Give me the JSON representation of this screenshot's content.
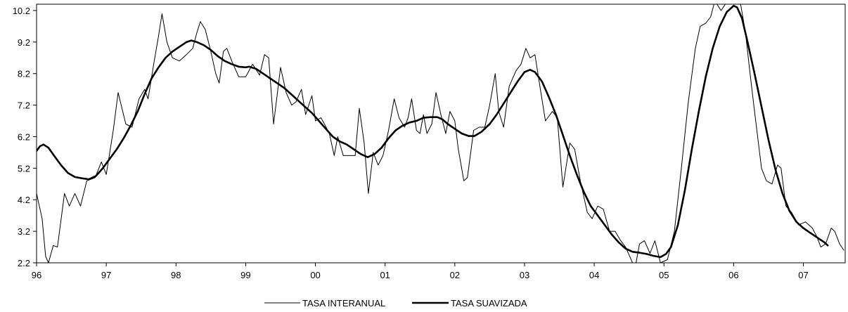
{
  "chart_data": {
    "type": "line",
    "title": "",
    "xlabel": "",
    "ylabel": "",
    "xlim": [
      1996.0,
      2007.6
    ],
    "ylim": [
      2.2,
      10.4
    ],
    "x_ticks": [
      {
        "value": 1996,
        "label": "96"
      },
      {
        "value": 1997,
        "label": "97"
      },
      {
        "value": 1998,
        "label": "98"
      },
      {
        "value": 1999,
        "label": "99"
      },
      {
        "value": 2000,
        "label": "00"
      },
      {
        "value": 2001,
        "label": "01"
      },
      {
        "value": 2002,
        "label": "02"
      },
      {
        "value": 2003,
        "label": "03"
      },
      {
        "value": 2004,
        "label": "04"
      },
      {
        "value": 2005,
        "label": "05"
      },
      {
        "value": 2006,
        "label": "06"
      },
      {
        "value": 2007,
        "label": "07"
      }
    ],
    "y_ticks": [
      {
        "value": 2.2,
        "label": "2.2"
      },
      {
        "value": 3.2,
        "label": "3.2"
      },
      {
        "value": 4.2,
        "label": "4.2"
      },
      {
        "value": 5.2,
        "label": "5.2"
      },
      {
        "value": 6.2,
        "label": "6.2"
      },
      {
        "value": 7.2,
        "label": "7.2"
      },
      {
        "value": 8.2,
        "label": "8.2"
      },
      {
        "value": 9.2,
        "label": "9.2"
      },
      {
        "value": 10.2,
        "label": "10.2"
      }
    ],
    "grid": false,
    "legend": "bottom-center",
    "series": [
      {
        "name": "TASA INTERANUAL",
        "color": "#000000",
        "line": "thin",
        "points": [
          [
            1996.0,
            4.4
          ],
          [
            1996.08,
            3.6
          ],
          [
            1996.13,
            2.4
          ],
          [
            1996.17,
            2.2
          ],
          [
            1996.24,
            2.75
          ],
          [
            1996.3,
            2.7
          ],
          [
            1996.4,
            4.4
          ],
          [
            1996.47,
            4.0
          ],
          [
            1996.55,
            4.4
          ],
          [
            1996.63,
            4.0
          ],
          [
            1996.72,
            4.8
          ],
          [
            1996.84,
            4.9
          ],
          [
            1996.93,
            5.4
          ],
          [
            1997.0,
            5.0
          ],
          [
            1997.1,
            6.4
          ],
          [
            1997.17,
            7.6
          ],
          [
            1997.28,
            6.6
          ],
          [
            1997.37,
            6.5
          ],
          [
            1997.47,
            7.4
          ],
          [
            1997.55,
            7.7
          ],
          [
            1997.6,
            7.4
          ],
          [
            1997.68,
            8.5
          ],
          [
            1997.75,
            9.4
          ],
          [
            1997.8,
            10.1
          ],
          [
            1997.87,
            9.2
          ],
          [
            1997.95,
            8.7
          ],
          [
            1998.05,
            8.6
          ],
          [
            1998.15,
            8.8
          ],
          [
            1998.24,
            9.0
          ],
          [
            1998.3,
            9.5
          ],
          [
            1998.35,
            9.85
          ],
          [
            1998.42,
            9.6
          ],
          [
            1998.5,
            8.9
          ],
          [
            1998.57,
            8.2
          ],
          [
            1998.62,
            7.9
          ],
          [
            1998.68,
            8.9
          ],
          [
            1998.73,
            9.0
          ],
          [
            1998.8,
            8.6
          ],
          [
            1998.9,
            8.1
          ],
          [
            1999.0,
            8.1
          ],
          [
            1999.1,
            8.5
          ],
          [
            1999.2,
            8.15
          ],
          [
            1999.27,
            8.8
          ],
          [
            1999.33,
            8.7
          ],
          [
            1999.4,
            6.6
          ],
          [
            1999.5,
            8.4
          ],
          [
            1999.58,
            7.6
          ],
          [
            1999.66,
            7.2
          ],
          [
            1999.72,
            7.3
          ],
          [
            1999.8,
            7.7
          ],
          [
            1999.86,
            6.9
          ],
          [
            1999.95,
            7.5
          ],
          [
            2000.0,
            6.7
          ],
          [
            2000.08,
            6.8
          ],
          [
            2000.13,
            6.6
          ],
          [
            2000.2,
            6.3
          ],
          [
            2000.27,
            5.6
          ],
          [
            2000.32,
            6.2
          ],
          [
            2000.4,
            5.6
          ],
          [
            2000.47,
            5.6
          ],
          [
            2000.57,
            5.6
          ],
          [
            2000.63,
            7.1
          ],
          [
            2000.7,
            6.0
          ],
          [
            2000.76,
            4.4
          ],
          [
            2000.83,
            5.7
          ],
          [
            2000.9,
            5.3
          ],
          [
            2000.97,
            5.6
          ],
          [
            2001.05,
            6.4
          ],
          [
            2001.13,
            7.4
          ],
          [
            2001.2,
            6.8
          ],
          [
            2001.28,
            6.5
          ],
          [
            2001.33,
            6.8
          ],
          [
            2001.38,
            7.4
          ],
          [
            2001.45,
            6.4
          ],
          [
            2001.5,
            6.3
          ],
          [
            2001.55,
            6.9
          ],
          [
            2001.6,
            6.3
          ],
          [
            2001.67,
            6.6
          ],
          [
            2001.73,
            7.6
          ],
          [
            2001.8,
            6.9
          ],
          [
            2001.87,
            6.3
          ],
          [
            2001.93,
            7.0
          ],
          [
            2002.0,
            6.7
          ],
          [
            2002.05,
            5.8
          ],
          [
            2002.13,
            4.8
          ],
          [
            2002.18,
            4.9
          ],
          [
            2002.27,
            6.4
          ],
          [
            2002.35,
            6.5
          ],
          [
            2002.43,
            6.5
          ],
          [
            2002.5,
            7.2
          ],
          [
            2002.58,
            8.2
          ],
          [
            2002.63,
            7.0
          ],
          [
            2002.7,
            6.5
          ],
          [
            2002.78,
            7.8
          ],
          [
            2002.88,
            8.3
          ],
          [
            2002.95,
            8.5
          ],
          [
            2003.02,
            9.0
          ],
          [
            2003.08,
            8.7
          ],
          [
            2003.15,
            8.8
          ],
          [
            2003.22,
            7.8
          ],
          [
            2003.3,
            6.7
          ],
          [
            2003.4,
            7.0
          ],
          [
            2003.47,
            6.8
          ],
          [
            2003.55,
            4.6
          ],
          [
            2003.65,
            6.0
          ],
          [
            2003.72,
            5.8
          ],
          [
            2003.8,
            4.8
          ],
          [
            2003.9,
            3.8
          ],
          [
            2003.97,
            3.6
          ],
          [
            2004.05,
            4.0
          ],
          [
            2004.13,
            3.9
          ],
          [
            2004.22,
            3.2
          ],
          [
            2004.3,
            3.2
          ],
          [
            2004.38,
            2.9
          ],
          [
            2004.45,
            2.7
          ],
          [
            2004.55,
            2.2
          ],
          [
            2004.6,
            2.2
          ],
          [
            2004.65,
            2.8
          ],
          [
            2004.72,
            2.9
          ],
          [
            2004.8,
            2.5
          ],
          [
            2004.87,
            2.9
          ],
          [
            2004.95,
            2.2
          ],
          [
            2005.05,
            2.3
          ],
          [
            2005.15,
            3.2
          ],
          [
            2005.25,
            5.2
          ],
          [
            2005.35,
            7.3
          ],
          [
            2005.45,
            9.0
          ],
          [
            2005.52,
            9.7
          ],
          [
            2005.6,
            9.8
          ],
          [
            2005.67,
            10.0
          ],
          [
            2005.73,
            10.5
          ],
          [
            2005.82,
            10.2
          ],
          [
            2005.88,
            10.4
          ],
          [
            2005.95,
            10.4
          ],
          [
            2006.03,
            10.4
          ],
          [
            2006.1,
            10.4
          ],
          [
            2006.17,
            9.5
          ],
          [
            2006.23,
            8.3
          ],
          [
            2006.3,
            7.0
          ],
          [
            2006.4,
            5.2
          ],
          [
            2006.47,
            4.8
          ],
          [
            2006.55,
            4.7
          ],
          [
            2006.63,
            5.3
          ],
          [
            2006.68,
            5.2
          ],
          [
            2006.75,
            4.0
          ],
          [
            2006.83,
            3.8
          ],
          [
            2006.93,
            3.4
          ],
          [
            2007.03,
            3.5
          ],
          [
            2007.13,
            3.3
          ],
          [
            2007.2,
            3.0
          ],
          [
            2007.25,
            2.7
          ],
          [
            2007.32,
            2.8
          ],
          [
            2007.4,
            3.3
          ],
          [
            2007.45,
            3.2
          ],
          [
            2007.52,
            2.8
          ],
          [
            2007.58,
            2.6
          ]
        ]
      },
      {
        "name": "TASA SUAVIZADA",
        "color": "#000000",
        "line": "thick",
        "points": [
          [
            1996.0,
            5.75
          ],
          [
            1996.05,
            5.9
          ],
          [
            1996.1,
            5.95
          ],
          [
            1996.17,
            5.85
          ],
          [
            1996.25,
            5.6
          ],
          [
            1996.35,
            5.3
          ],
          [
            1996.45,
            5.05
          ],
          [
            1996.55,
            4.92
          ],
          [
            1996.65,
            4.88
          ],
          [
            1996.75,
            4.85
          ],
          [
            1996.85,
            4.95
          ],
          [
            1996.95,
            5.2
          ],
          [
            1997.05,
            5.5
          ],
          [
            1997.15,
            5.8
          ],
          [
            1997.25,
            6.15
          ],
          [
            1997.35,
            6.55
          ],
          [
            1997.45,
            7.0
          ],
          [
            1997.55,
            7.55
          ],
          [
            1997.65,
            8.05
          ],
          [
            1997.75,
            8.4
          ],
          [
            1997.85,
            8.7
          ],
          [
            1997.95,
            8.9
          ],
          [
            1998.05,
            9.05
          ],
          [
            1998.15,
            9.2
          ],
          [
            1998.22,
            9.25
          ],
          [
            1998.3,
            9.2
          ],
          [
            1998.4,
            9.1
          ],
          [
            1998.5,
            8.95
          ],
          [
            1998.6,
            8.75
          ],
          [
            1998.7,
            8.6
          ],
          [
            1998.8,
            8.5
          ],
          [
            1998.9,
            8.42
          ],
          [
            1999.0,
            8.4
          ],
          [
            1999.05,
            8.42
          ],
          [
            1999.15,
            8.35
          ],
          [
            1999.25,
            8.2
          ],
          [
            1999.35,
            8.05
          ],
          [
            1999.45,
            7.9
          ],
          [
            1999.55,
            7.75
          ],
          [
            1999.65,
            7.55
          ],
          [
            1999.75,
            7.35
          ],
          [
            1999.85,
            7.15
          ],
          [
            1999.95,
            6.95
          ],
          [
            2000.05,
            6.7
          ],
          [
            2000.15,
            6.45
          ],
          [
            2000.25,
            6.2
          ],
          [
            2000.35,
            6.05
          ],
          [
            2000.45,
            5.95
          ],
          [
            2000.55,
            5.8
          ],
          [
            2000.65,
            5.65
          ],
          [
            2000.75,
            5.55
          ],
          [
            2000.85,
            5.65
          ],
          [
            2000.95,
            5.85
          ],
          [
            2001.05,
            6.15
          ],
          [
            2001.15,
            6.4
          ],
          [
            2001.25,
            6.55
          ],
          [
            2001.35,
            6.65
          ],
          [
            2001.45,
            6.7
          ],
          [
            2001.55,
            6.8
          ],
          [
            2001.65,
            6.82
          ],
          [
            2001.75,
            6.82
          ],
          [
            2001.82,
            6.75
          ],
          [
            2001.9,
            6.6
          ],
          [
            2002.0,
            6.45
          ],
          [
            2002.1,
            6.3
          ],
          [
            2002.2,
            6.22
          ],
          [
            2002.28,
            6.22
          ],
          [
            2002.38,
            6.35
          ],
          [
            2002.5,
            6.6
          ],
          [
            2002.6,
            6.9
          ],
          [
            2002.7,
            7.25
          ],
          [
            2002.8,
            7.6
          ],
          [
            2002.9,
            7.95
          ],
          [
            2003.0,
            8.25
          ],
          [
            2003.08,
            8.32
          ],
          [
            2003.15,
            8.25
          ],
          [
            2003.25,
            7.95
          ],
          [
            2003.35,
            7.45
          ],
          [
            2003.45,
            6.9
          ],
          [
            2003.55,
            6.25
          ],
          [
            2003.65,
            5.6
          ],
          [
            2003.75,
            5.0
          ],
          [
            2003.85,
            4.45
          ],
          [
            2003.95,
            4.0
          ],
          [
            2004.05,
            3.7
          ],
          [
            2004.15,
            3.4
          ],
          [
            2004.25,
            3.1
          ],
          [
            2004.35,
            2.85
          ],
          [
            2004.45,
            2.65
          ],
          [
            2004.55,
            2.55
          ],
          [
            2004.65,
            2.52
          ],
          [
            2004.75,
            2.48
          ],
          [
            2004.85,
            2.42
          ],
          [
            2004.95,
            2.38
          ],
          [
            2005.03,
            2.48
          ],
          [
            2005.1,
            2.7
          ],
          [
            2005.2,
            3.4
          ],
          [
            2005.3,
            4.5
          ],
          [
            2005.4,
            5.8
          ],
          [
            2005.5,
            7.0
          ],
          [
            2005.6,
            8.1
          ],
          [
            2005.7,
            9.0
          ],
          [
            2005.8,
            9.7
          ],
          [
            2005.9,
            10.15
          ],
          [
            2006.0,
            10.35
          ],
          [
            2006.05,
            10.3
          ],
          [
            2006.12,
            9.95
          ],
          [
            2006.2,
            9.2
          ],
          [
            2006.3,
            8.2
          ],
          [
            2006.4,
            7.15
          ],
          [
            2006.5,
            6.1
          ],
          [
            2006.6,
            5.15
          ],
          [
            2006.7,
            4.4
          ],
          [
            2006.8,
            3.85
          ],
          [
            2006.9,
            3.5
          ],
          [
            2007.0,
            3.3
          ],
          [
            2007.1,
            3.15
          ],
          [
            2007.2,
            3.0
          ],
          [
            2007.3,
            2.85
          ],
          [
            2007.35,
            2.75
          ]
        ]
      }
    ]
  }
}
